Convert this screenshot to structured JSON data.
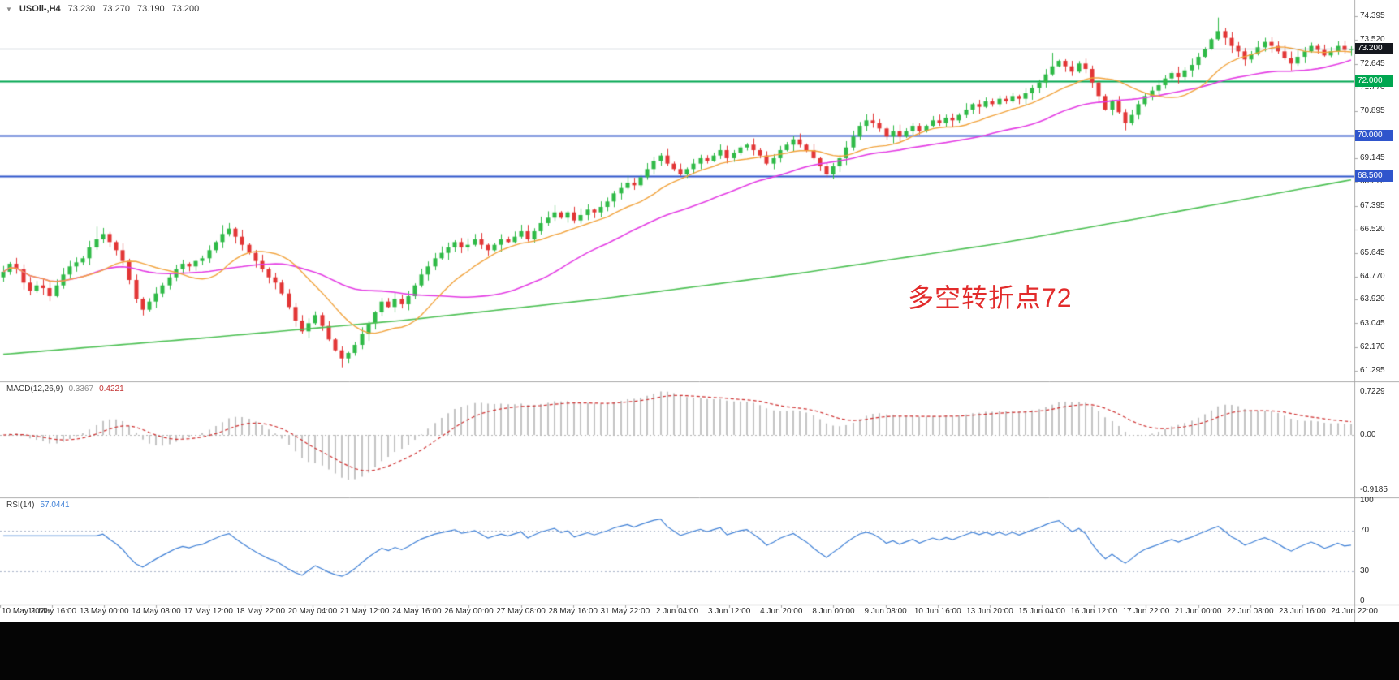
{
  "header": {
    "symbol_period": "USOil-,H4",
    "open": "73.230",
    "high": "73.270",
    "low": "73.190",
    "close": "73.200"
  },
  "chart_data": {
    "type": "candlestick",
    "title": "USOil-,H4",
    "timeframe": "H4",
    "current_price": 73.2,
    "ylim": [
      60.9,
      75.0
    ],
    "price_axis": {
      "ticks": [
        "74.395",
        "73.520",
        "72.645",
        "71.770",
        "70.895",
        "69.145",
        "68.270",
        "67.395",
        "66.520",
        "65.645",
        "64.770",
        "63.920",
        "63.045",
        "62.170",
        "61.295"
      ],
      "badges": [
        {
          "label": "73.200",
          "price": 73.2,
          "bg": "#15181e"
        },
        {
          "label": "72.000",
          "price": 72.0,
          "bg": "#00a650"
        },
        {
          "label": "70.000",
          "price": 70.0,
          "bg": "#2f55cc"
        },
        {
          "label": "68.500",
          "price": 68.5,
          "bg": "#2f55cc"
        }
      ]
    },
    "hlines": [
      {
        "name": "current-price-line",
        "price": 73.2,
        "color": "#8a97a5",
        "width": 1
      },
      {
        "name": "hline-72",
        "price": 72.0,
        "color": "#00a650",
        "width": 2
      },
      {
        "name": "hline-70",
        "price": 70.0,
        "color": "#2f55cc",
        "width": 2
      },
      {
        "name": "hline-68-5",
        "price": 68.5,
        "color": "#2f55cc",
        "width": 2
      }
    ],
    "closes": [
      64.95,
      65.25,
      65.05,
      64.55,
      64.25,
      64.45,
      64.35,
      64.05,
      64.45,
      64.85,
      65.15,
      65.3,
      65.45,
      65.85,
      66.15,
      66.35,
      66.05,
      65.75,
      65.35,
      64.65,
      63.95,
      63.55,
      63.85,
      64.15,
      64.45,
      64.75,
      65.05,
      65.25,
      65.15,
      65.35,
      65.45,
      65.75,
      66.05,
      66.35,
      66.55,
      66.25,
      65.95,
      65.65,
      65.35,
      65.05,
      64.75,
      64.55,
      64.15,
      63.65,
      63.15,
      62.75,
      63.05,
      63.35,
      62.95,
      62.45,
      62.05,
      61.75,
      61.95,
      62.25,
      62.65,
      63.05,
      63.45,
      63.85,
      63.65,
      63.95,
      63.75,
      64.05,
      64.45,
      64.85,
      65.15,
      65.45,
      65.65,
      65.85,
      66.05,
      65.85,
      65.95,
      66.15,
      65.95,
      65.75,
      65.95,
      66.15,
      66.05,
      66.25,
      66.45,
      66.15,
      66.45,
      66.75,
      66.95,
      67.15,
      66.95,
      67.15,
      66.85,
      67.05,
      67.25,
      67.15,
      67.35,
      67.55,
      67.85,
      68.05,
      68.25,
      68.15,
      68.45,
      68.75,
      69.05,
      69.25,
      68.95,
      68.75,
      68.55,
      68.75,
      68.95,
      69.15,
      69.05,
      69.25,
      69.45,
      69.15,
      69.35,
      69.55,
      69.65,
      69.45,
      69.25,
      68.95,
      69.15,
      69.45,
      69.65,
      69.85,
      69.65,
      69.45,
      69.15,
      68.85,
      68.55,
      68.85,
      69.15,
      69.55,
      69.95,
      70.35,
      70.55,
      70.45,
      70.25,
      69.95,
      70.15,
      69.95,
      70.15,
      70.35,
      70.15,
      70.35,
      70.55,
      70.45,
      70.65,
      70.55,
      70.75,
      70.95,
      71.15,
      71.05,
      71.25,
      71.15,
      71.35,
      71.25,
      71.45,
      71.35,
      71.55,
      71.75,
      71.95,
      72.25,
      72.55,
      72.75,
      72.55,
      72.35,
      72.65,
      72.45,
      71.95,
      71.45,
      70.95,
      71.25,
      70.85,
      70.45,
      70.75,
      71.15,
      71.45,
      71.65,
      71.85,
      72.1,
      72.3,
      72.15,
      72.4,
      72.6,
      72.9,
      73.2,
      73.55,
      73.85,
      73.6,
      73.3,
      73.1,
      72.8,
      73.0,
      73.25,
      73.45,
      73.3,
      73.1,
      72.85,
      72.65,
      72.9,
      73.1,
      73.3,
      73.15,
      72.95,
      73.1,
      73.3,
      73.15,
      73.2
    ],
    "wick_overrides": {
      "14": {
        "high": 66.62
      },
      "33": {
        "high": 66.68
      },
      "51": {
        "low": 61.42
      },
      "158": {
        "high": 73.05
      },
      "169": {
        "low": 70.18
      },
      "183": {
        "high": 74.35
      }
    },
    "ma_fast_period": 13,
    "ma_mid_period": 34,
    "ma_slow_anchors": [
      [
        0,
        61.9
      ],
      [
        30,
        62.5
      ],
      [
        60,
        63.15
      ],
      [
        90,
        63.95
      ],
      [
        120,
        64.9
      ],
      [
        150,
        66.0
      ],
      [
        175,
        67.1
      ],
      [
        203,
        68.35
      ]
    ],
    "macd": {
      "label": "MACD(12,26,9)",
      "value": "0.3367",
      "signal_value": "0.4221",
      "fast": 12,
      "slow": 26,
      "signal": 9,
      "axis_labels": [
        {
          "label": "0.7229",
          "v": 0.7229
        },
        {
          "label": "0.00",
          "v": 0
        },
        {
          "label": "-0.9185",
          "v": -0.9185
        }
      ]
    },
    "rsi": {
      "label": "RSI(14)",
      "value": "57.0441",
      "period": 14,
      "levels": [
        70,
        30
      ],
      "axis_labels": [
        {
          "label": "100",
          "v": 100
        },
        {
          "label": "70",
          "v": 70
        },
        {
          "label": "30",
          "v": 30
        },
        {
          "label": "0",
          "v": 0
        }
      ]
    },
    "time_labels": [
      "10 May 2021",
      "11 May 16:00",
      "13 May 00:00",
      "14 May 08:00",
      "17 May 12:00",
      "18 May 22:00",
      "20 May 04:00",
      "21 May 12:00",
      "24 May 16:00",
      "26 May 00:00",
      "27 May 08:00",
      "28 May 16:00",
      "31 May 22:00",
      "2 Jun 04:00",
      "3 Jun 12:00",
      "4 Jun 20:00",
      "8 Jun 00:00",
      "9 Jun 08:00",
      "10 Jun 16:00",
      "13 Jun 20:00",
      "15 Jun 04:00",
      "16 Jun 12:00",
      "17 Jun 22:00",
      "21 Jun 00:00",
      "22 Jun 08:00",
      "23 Jun 16:00",
      "24 Jun 22:00"
    ],
    "annotation": {
      "text": "多空转折点72",
      "color": "#e22b2b"
    },
    "colors": {
      "bg": "#ffffff",
      "up": "#2fba47",
      "down": "#e23535",
      "ma_fast": "#f2a33c",
      "ma_mid": "#e43ce4",
      "ma_slow": "#4ec155",
      "price_line": "#8a97a5",
      "frame": "#a6a6a6",
      "macd_hist": "#c4c4c4",
      "macd_signal": "#cf3030",
      "rsi": "#3d7fd6",
      "text": "#2b2b2b"
    }
  }
}
